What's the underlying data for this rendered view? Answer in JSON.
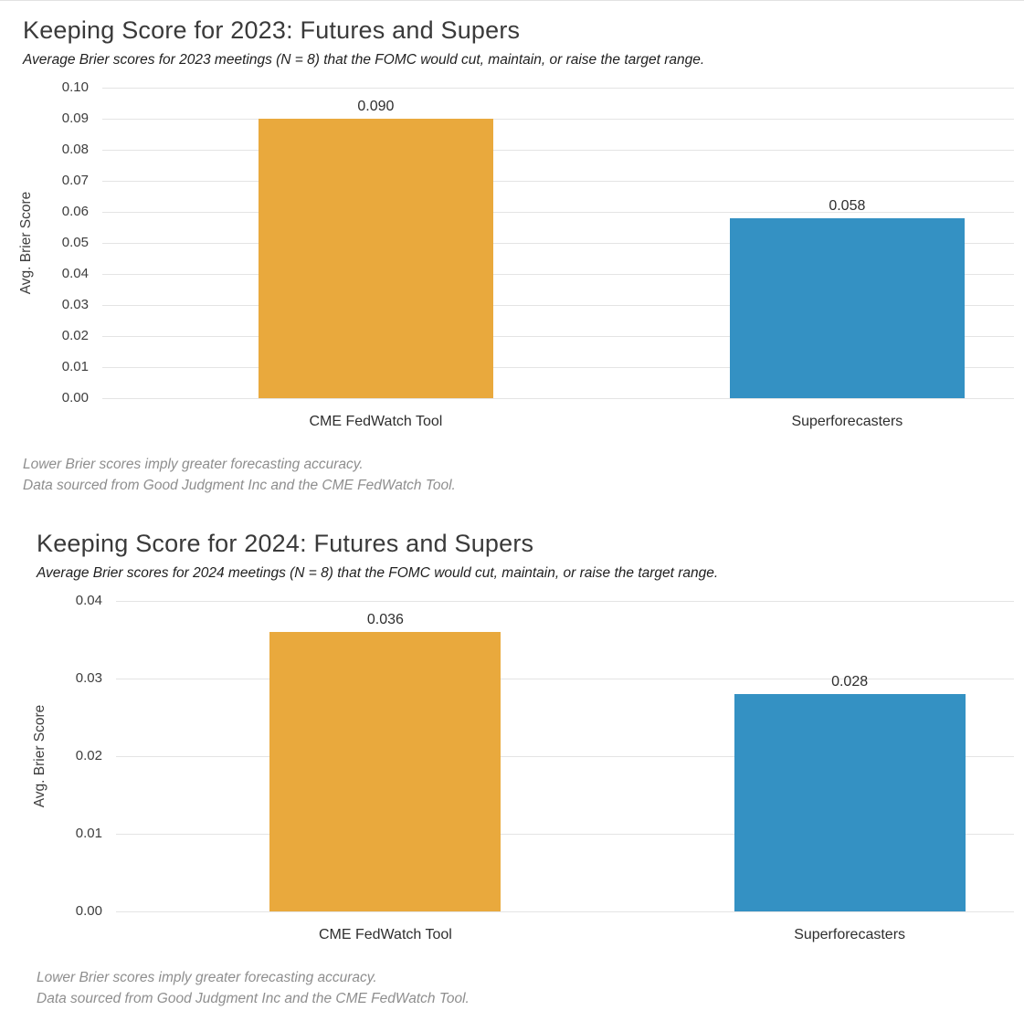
{
  "colors": {
    "bar_orange": "#E9A93D",
    "bar_blue": "#3491C3",
    "gridline": "#e4e4e4",
    "footnote_gray": "#8e8e8e",
    "title_gray": "#3a3a3a"
  },
  "chart_data": [
    {
      "type": "bar",
      "title": "Keeping Score for 2023: Futures and Supers",
      "subtitle": "Average Brier scores for 2023 meetings (N = 8) that the FOMC would cut, maintain, or raise the target range.",
      "ylabel": "Avg. Brier Score",
      "xlabel": "",
      "categories": [
        "CME FedWatch Tool",
        "Superforecasters"
      ],
      "values": [
        0.09,
        0.058
      ],
      "value_labels": [
        "0.090",
        "0.058"
      ],
      "bar_colors": [
        "#E9A93D",
        "#3491C3"
      ],
      "ylim": [
        0,
        0.1
      ],
      "yticks": [
        0.0,
        0.01,
        0.02,
        0.03,
        0.04,
        0.05,
        0.06,
        0.07,
        0.08,
        0.09,
        0.1
      ],
      "ytick_labels": [
        "0.00",
        "0.01",
        "0.02",
        "0.03",
        "0.04",
        "0.05",
        "0.06",
        "0.07",
        "0.08",
        "0.09",
        "0.10"
      ],
      "grid": true,
      "legend": "none",
      "note_line1": "Lower Brier scores imply greater forecasting accuracy.",
      "note_line2": "Data sourced from Good Judgment Inc and the CME FedWatch Tool."
    },
    {
      "type": "bar",
      "title": "Keeping Score for 2024: Futures and Supers",
      "subtitle": "Average Brier scores for 2024 meetings (N = 8) that the FOMC would cut, maintain, or raise the target range.",
      "ylabel": "Avg. Brier Score",
      "xlabel": "",
      "categories": [
        "CME FedWatch Tool",
        "Superforecasters"
      ],
      "values": [
        0.036,
        0.028
      ],
      "value_labels": [
        "0.036",
        "0.028"
      ],
      "bar_colors": [
        "#E9A93D",
        "#3491C3"
      ],
      "ylim": [
        0,
        0.04
      ],
      "yticks": [
        0.0,
        0.01,
        0.02,
        0.03,
        0.04
      ],
      "ytick_labels": [
        "0.00",
        "0.01",
        "0.02",
        "0.03",
        "0.04"
      ],
      "grid": true,
      "legend": "none",
      "note_line1": "Lower Brier scores imply greater forecasting accuracy.",
      "note_line2": "Data sourced from Good Judgment Inc and the CME FedWatch Tool."
    }
  ]
}
